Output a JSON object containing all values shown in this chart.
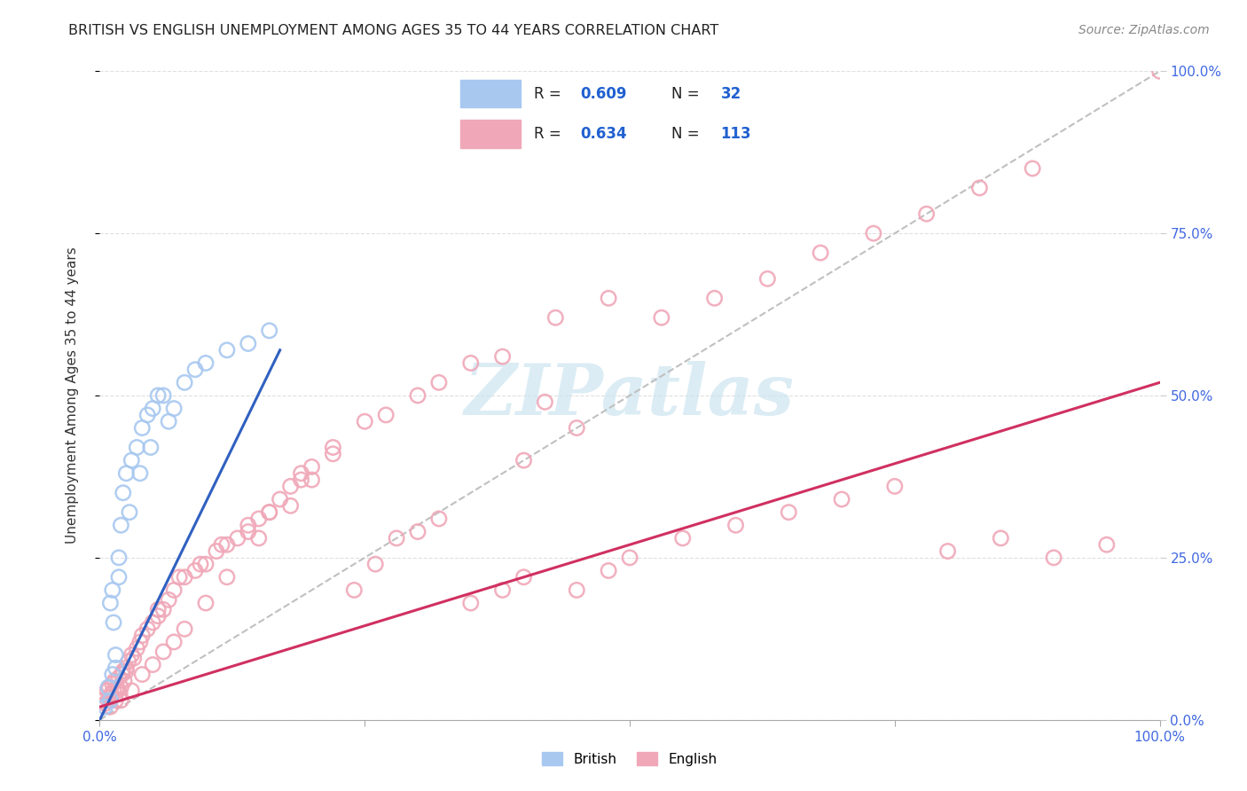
{
  "title": "BRITISH VS ENGLISH UNEMPLOYMENT AMONG AGES 35 TO 44 YEARS CORRELATION CHART",
  "source": "Source: ZipAtlas.com",
  "ylabel": "Unemployment Among Ages 35 to 44 years",
  "legend_british": "British",
  "legend_english": "English",
  "r_british": 0.609,
  "n_british": 32,
  "r_english": 0.634,
  "n_english": 113,
  "british_scatter_color": "#a8c8f0",
  "british_line_color": "#3060c0",
  "english_scatter_color": "#f0a8b8",
  "english_line_color": "#d03060",
  "diagonal_color": "#c0c0c0",
  "watermark_color": "#cce4f0",
  "grid_color": "#e0e0e0",
  "tick_label_color": "#4169e1",
  "title_color": "#222222",
  "source_color": "#888888",
  "ylabel_color": "#333333",
  "legend_text_color": "#222222",
  "legend_value_color": "#2060d0",
  "brit_x": [
    0.5,
    0.8,
    1.0,
    1.0,
    1.2,
    1.3,
    1.5,
    1.5,
    1.8,
    2.0,
    2.2,
    2.5,
    3.0,
    3.5,
    4.0,
    4.5,
    5.0,
    5.5,
    6.0,
    7.0,
    8.0,
    9.0,
    10.0,
    12.0,
    14.0,
    16.0,
    1.2,
    1.8,
    2.8,
    3.8,
    4.8,
    6.5
  ],
  "brit_y": [
    2.0,
    5.0,
    3.0,
    18.0,
    20.0,
    15.0,
    10.0,
    8.0,
    25.0,
    30.0,
    35.0,
    38.0,
    40.0,
    42.0,
    45.0,
    47.0,
    48.0,
    50.0,
    50.0,
    48.0,
    52.0,
    54.0,
    55.0,
    57.0,
    58.0,
    60.0,
    7.0,
    22.0,
    32.0,
    38.0,
    42.0,
    46.0
  ],
  "eng_x": [
    0.3,
    0.5,
    0.7,
    0.8,
    0.9,
    1.0,
    1.1,
    1.2,
    1.3,
    1.4,
    1.5,
    1.6,
    1.7,
    1.8,
    1.9,
    2.0,
    2.1,
    2.2,
    2.3,
    2.5,
    2.7,
    3.0,
    3.2,
    3.5,
    4.0,
    4.5,
    5.0,
    5.5,
    6.0,
    6.5,
    7.0,
    8.0,
    9.0,
    10.0,
    11.0,
    12.0,
    13.0,
    14.0,
    15.0,
    16.0,
    17.0,
    18.0,
    19.0,
    20.0,
    22.0,
    24.0,
    26.0,
    28.0,
    30.0,
    32.0,
    35.0,
    38.0,
    40.0,
    42.0,
    45.0,
    48.0,
    50.0,
    55.0,
    60.0,
    65.0,
    70.0,
    75.0,
    80.0,
    85.0,
    90.0,
    95.0,
    100.0,
    1.0,
    2.0,
    3.0,
    4.0,
    5.0,
    6.0,
    7.0,
    8.0,
    10.0,
    12.0,
    15.0,
    18.0,
    20.0,
    25.0,
    30.0,
    35.0,
    40.0,
    45.0,
    2.5,
    3.8,
    5.5,
    7.5,
    9.5,
    11.5,
    14.0,
    16.0,
    19.0,
    22.0,
    27.0,
    32.0,
    38.0,
    43.0,
    48.0,
    53.0,
    58.0,
    63.0,
    68.0,
    73.0,
    78.0,
    83.0,
    88.0
  ],
  "eng_y": [
    3.0,
    2.5,
    4.5,
    3.0,
    5.0,
    3.5,
    4.0,
    5.5,
    4.5,
    6.0,
    3.0,
    5.0,
    4.5,
    6.5,
    4.0,
    5.0,
    7.0,
    7.5,
    6.0,
    8.0,
    9.0,
    10.0,
    9.5,
    11.0,
    13.0,
    14.0,
    15.0,
    16.0,
    17.0,
    18.5,
    20.0,
    22.0,
    23.0,
    24.0,
    26.0,
    27.0,
    28.0,
    30.0,
    31.0,
    32.0,
    34.0,
    36.0,
    37.0,
    39.0,
    41.0,
    20.0,
    24.0,
    28.0,
    29.0,
    31.0,
    18.0,
    20.0,
    22.0,
    49.0,
    20.0,
    23.0,
    25.0,
    28.0,
    30.0,
    32.0,
    34.0,
    36.0,
    26.0,
    28.0,
    25.0,
    27.0,
    100.0,
    2.0,
    3.0,
    4.5,
    7.0,
    8.5,
    10.5,
    12.0,
    14.0,
    18.0,
    22.0,
    28.0,
    33.0,
    37.0,
    46.0,
    50.0,
    55.0,
    40.0,
    45.0,
    7.5,
    12.0,
    17.0,
    22.0,
    24.0,
    27.0,
    29.0,
    32.0,
    38.0,
    42.0,
    47.0,
    52.0,
    56.0,
    62.0,
    65.0,
    62.0,
    65.0,
    68.0,
    72.0,
    75.0,
    78.0,
    82.0,
    85.0
  ],
  "brit_line_x": [
    0,
    17
  ],
  "brit_line_y": [
    0,
    57
  ],
  "eng_line_x": [
    0,
    100
  ],
  "eng_line_y": [
    2,
    52
  ],
  "diag_line_x": [
    0,
    100
  ],
  "diag_line_y": [
    0,
    100
  ],
  "xlim": [
    0,
    100
  ],
  "ylim": [
    0,
    100
  ],
  "x_ticks": [
    0,
    25,
    50,
    75,
    100
  ],
  "y_ticks": [
    0,
    25,
    50,
    75,
    100
  ],
  "x_tick_labels": [
    "0.0%",
    "",
    "",
    "",
    "100.0%"
  ],
  "y_tick_labels_right": [
    "0.0%",
    "25.0%",
    "50.0%",
    "75.0%",
    "100.0%"
  ]
}
